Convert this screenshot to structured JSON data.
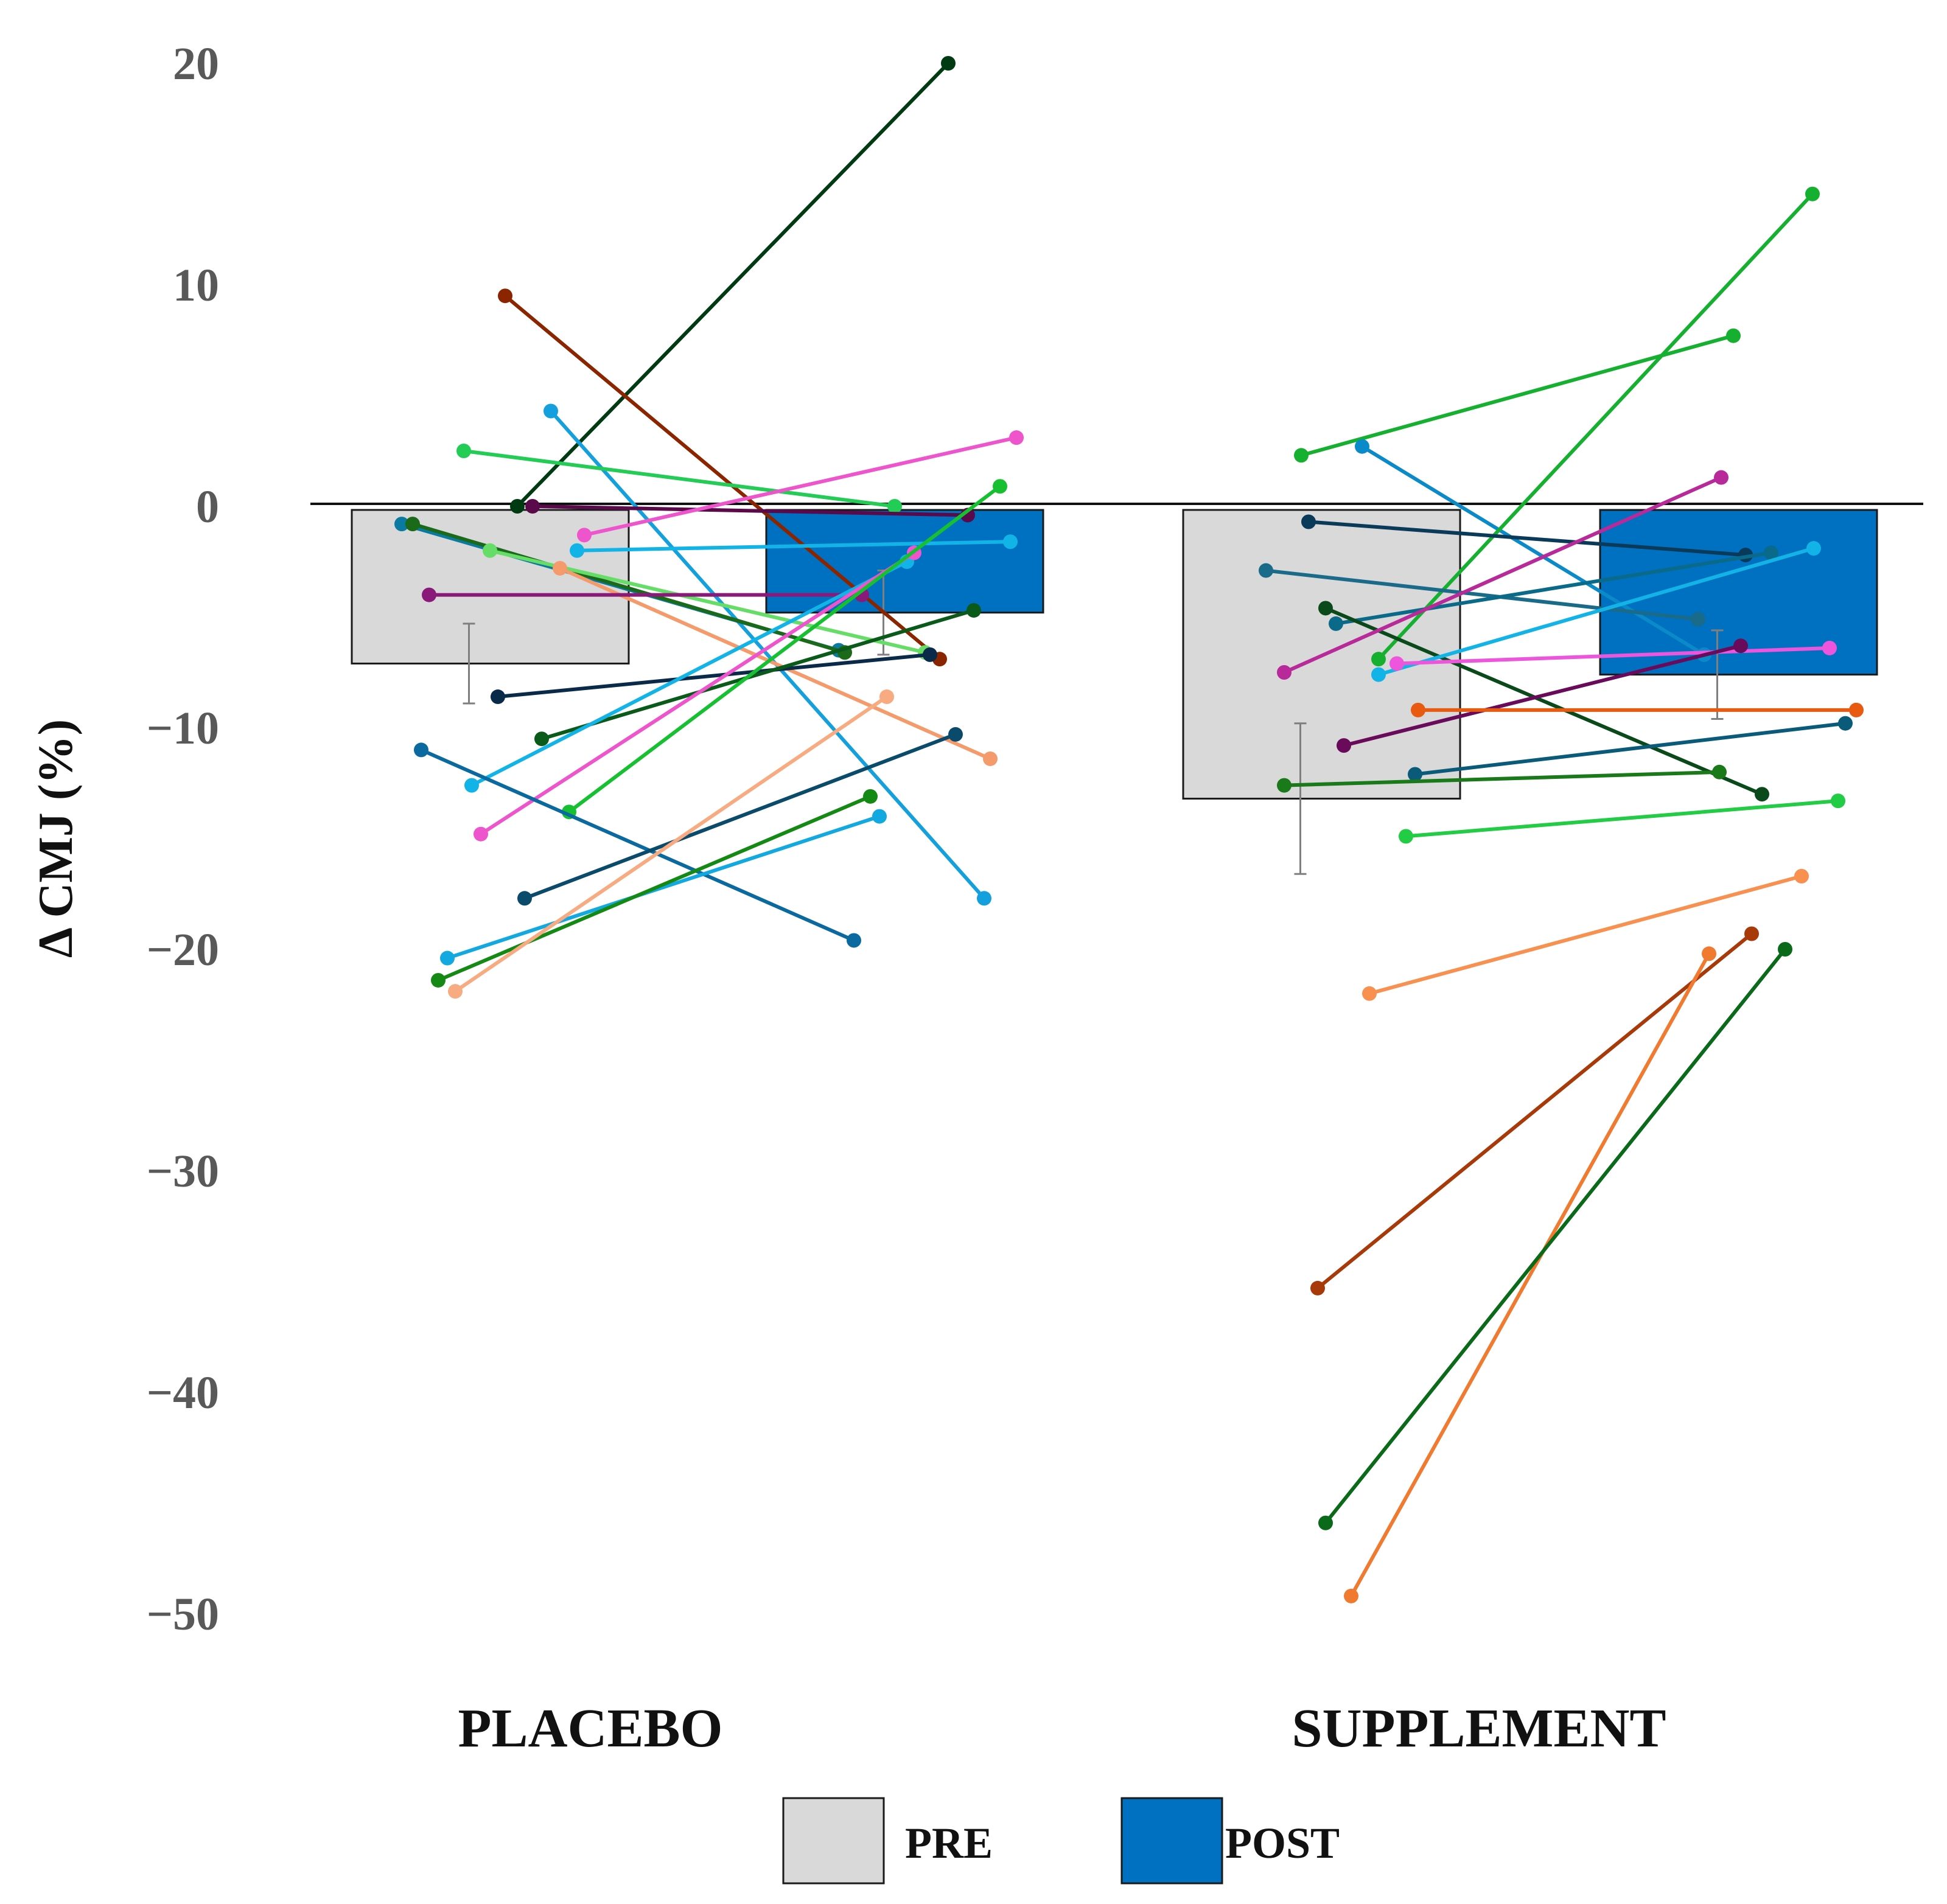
{
  "chart_data": {
    "type": "bar",
    "title": "",
    "xlabel": "",
    "ylabel": "Δ CMJ (%)",
    "ylim": [
      -50,
      20
    ],
    "yticks": [
      20,
      10,
      0,
      -10,
      -20,
      -30,
      -40,
      -50
    ],
    "ytick_labels": [
      "20",
      "10",
      "0",
      "−10",
      "−20",
      "−30",
      "−40",
      "−50"
    ],
    "categories": [
      "PLACEBO",
      "SUPPLEMENT"
    ],
    "series": [
      {
        "name": "PRE",
        "color": "#d9d9d9",
        "values": [
          -7.1,
          -13.2
        ],
        "error": [
          1.8,
          3.4
        ]
      },
      {
        "name": "POST",
        "color": "#0070c0",
        "values": [
          -4.8,
          -7.6
        ],
        "error": [
          1.9,
          2.0
        ]
      }
    ],
    "individual_lines": [
      {
        "group": 0,
        "pre": 0.0,
        "post": 20.0,
        "color": "#003a12"
      },
      {
        "group": 0,
        "pre": 9.5,
        "post": -6.9,
        "color": "#8b2500"
      },
      {
        "group": 0,
        "pre": 4.3,
        "post": -17.7,
        "color": "#14a0dc"
      },
      {
        "group": 0,
        "pre": 2.5,
        "post": 0.0,
        "color": "#22cc55"
      },
      {
        "group": 0,
        "pre": 0.0,
        "post": -0.4,
        "color": "#5a0a4a"
      },
      {
        "group": 0,
        "pre": -1.3,
        "post": 3.1,
        "color": "#ee55cc"
      },
      {
        "group": 0,
        "pre": -0.8,
        "post": -6.5,
        "color": "#0a7aa0"
      },
      {
        "group": 0,
        "pre": -0.8,
        "post": -6.6,
        "color": "#1a6a1a"
      },
      {
        "group": 0,
        "pre": -2.0,
        "post": -6.6,
        "color": "#66dd66"
      },
      {
        "group": 0,
        "pre": -2.0,
        "post": -1.6,
        "color": "#12b4e8"
      },
      {
        "group": 0,
        "pre": -2.8,
        "post": -11.4,
        "color": "#f59a6a"
      },
      {
        "group": 0,
        "pre": -4.0,
        "post": -4.0,
        "color": "#8a1a7a"
      },
      {
        "group": 0,
        "pre": -8.6,
        "post": -6.7,
        "color": "#0a2a4a"
      },
      {
        "group": 0,
        "pre": -10.5,
        "post": -4.7,
        "color": "#0a5a1a"
      },
      {
        "group": 0,
        "pre": -12.6,
        "post": -2.5,
        "color": "#12b4e8"
      },
      {
        "group": 0,
        "pre": -14.8,
        "post": -2.1,
        "color": "#ee55cc"
      },
      {
        "group": 0,
        "pre": -13.8,
        "post": 0.9,
        "color": "#16c030"
      },
      {
        "group": 0,
        "pre": -11.0,
        "post": -19.6,
        "color": "#0a6aa0"
      },
      {
        "group": 0,
        "pre": -17.7,
        "post": -10.3,
        "color": "#0a4a6a"
      },
      {
        "group": 0,
        "pre": -20.4,
        "post": -14.0,
        "color": "#12a8e0"
      },
      {
        "group": 0,
        "pre": -21.4,
        "post": -13.1,
        "color": "#148a14"
      },
      {
        "group": 0,
        "pre": -21.9,
        "post": -8.6,
        "color": "#f8aa80"
      },
      {
        "group": 1,
        "pre": 2.3,
        "post": 7.7,
        "color": "#16b030"
      },
      {
        "group": 1,
        "pre": 2.7,
        "post": -6.7,
        "color": "#0a8ac8"
      },
      {
        "group": 1,
        "pre": -6.9,
        "post": 14.1,
        "color": "#16b030"
      },
      {
        "group": 1,
        "pre": -0.7,
        "post": -2.2,
        "color": "#0a3a5a"
      },
      {
        "group": 1,
        "pre": -2.9,
        "post": -5.1,
        "color": "#1a6a8a"
      },
      {
        "group": 1,
        "pre": -5.3,
        "post": -2.1,
        "color": "#0a6a8a"
      },
      {
        "group": 1,
        "pre": -4.6,
        "post": -13.0,
        "color": "#0a4a1a"
      },
      {
        "group": 1,
        "pre": -7.5,
        "post": 1.3,
        "color": "#b82a9a"
      },
      {
        "group": 1,
        "pre": -7.6,
        "post": -1.9,
        "color": "#12b4e8"
      },
      {
        "group": 1,
        "pre": -7.1,
        "post": -6.4,
        "color": "#ee55dd"
      },
      {
        "group": 1,
        "pre": -10.8,
        "post": -6.3,
        "color": "#6a0a5a"
      },
      {
        "group": 1,
        "pre": -9.2,
        "post": -9.2,
        "color": "#e85a10"
      },
      {
        "group": 1,
        "pre": -12.1,
        "post": -9.8,
        "color": "#0a5a7a"
      },
      {
        "group": 1,
        "pre": -12.6,
        "post": -12.0,
        "color": "#1a7a1a"
      },
      {
        "group": 1,
        "pre": -14.9,
        "post": -13.3,
        "color": "#22cc44"
      },
      {
        "group": 1,
        "pre": -22.0,
        "post": -16.7,
        "color": "#f89050"
      },
      {
        "group": 1,
        "pre": -35.3,
        "post": -19.3,
        "color": "#a83a0a"
      },
      {
        "group": 1,
        "pre": -49.2,
        "post": -20.2,
        "color": "#f07a30"
      },
      {
        "group": 1,
        "pre": -45.9,
        "post": -20.0,
        "color": "#0a6a1a"
      }
    ],
    "legend": {
      "position": "bottom-center",
      "entries": [
        "PRE",
        "POST"
      ]
    }
  }
}
